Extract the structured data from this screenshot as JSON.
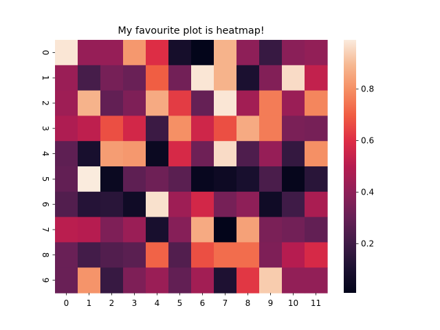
{
  "chart_data": {
    "type": "heatmap",
    "title": "My favourite plot is heatmap!",
    "xlabel": "",
    "ylabel": "",
    "x_categories": [
      "0",
      "1",
      "2",
      "3",
      "4",
      "5",
      "6",
      "7",
      "8",
      "9",
      "10",
      "11"
    ],
    "y_categories": [
      "0",
      "1",
      "2",
      "3",
      "4",
      "5",
      "6",
      "7",
      "8",
      "9"
    ],
    "values": [
      [
        0.98,
        0.42,
        0.42,
        0.82,
        0.6,
        0.08,
        0.01,
        0.88,
        0.4,
        0.18,
        0.39,
        0.41
      ],
      [
        0.43,
        0.22,
        0.34,
        0.31,
        0.7,
        0.33,
        0.98,
        0.88,
        0.1,
        0.37,
        0.96,
        0.53
      ],
      [
        0.44,
        0.88,
        0.29,
        0.36,
        0.86,
        0.63,
        0.3,
        0.98,
        0.45,
        0.76,
        0.43,
        0.78
      ],
      [
        0.48,
        0.52,
        0.67,
        0.57,
        0.19,
        0.8,
        0.56,
        0.67,
        0.86,
        0.76,
        0.35,
        0.34
      ],
      [
        0.28,
        0.09,
        0.83,
        0.82,
        0.04,
        0.58,
        0.32,
        0.96,
        0.24,
        0.42,
        0.17,
        0.8
      ],
      [
        0.29,
        0.99,
        0.04,
        0.28,
        0.32,
        0.27,
        0.03,
        0.05,
        0.09,
        0.23,
        0.02,
        0.14
      ],
      [
        0.25,
        0.13,
        0.14,
        0.06,
        0.97,
        0.44,
        0.57,
        0.34,
        0.4,
        0.06,
        0.2,
        0.47
      ],
      [
        0.51,
        0.5,
        0.36,
        0.43,
        0.09,
        0.38,
        0.86,
        0.01,
        0.84,
        0.35,
        0.33,
        0.29
      ],
      [
        0.31,
        0.21,
        0.25,
        0.27,
        0.71,
        0.25,
        0.67,
        0.73,
        0.73,
        0.36,
        0.5,
        0.58
      ],
      [
        0.31,
        0.81,
        0.18,
        0.36,
        0.43,
        0.29,
        0.45,
        0.11,
        0.62,
        0.93,
        0.41,
        0.41
      ]
    ],
    "colorbar": {
      "range": [
        0.01,
        0.99
      ],
      "ticks": [
        0.2,
        0.4,
        0.6,
        0.8
      ],
      "tick_labels": [
        "0.2",
        "0.4",
        "0.6",
        "0.8"
      ],
      "colormap": "rocket"
    },
    "grid": false,
    "legend": "colorbar-right"
  }
}
